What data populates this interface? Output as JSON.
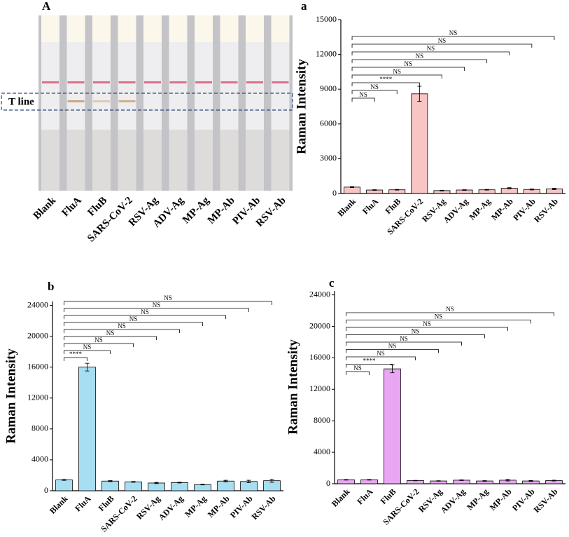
{
  "photo": {
    "label": "A",
    "t_line": "T line",
    "strips": [
      "Blank",
      "FluA",
      "FluB",
      "SARS-CoV-2",
      "RSV-Ag",
      "ADV-Ag",
      "MP-Ag",
      "MP-Ab",
      "PIV-Ab",
      "RSV-Ab"
    ]
  },
  "chart_data": [
    {
      "type": "bar",
      "panel": "a",
      "ylabel": "Raman Intensity",
      "color": "#f8c4c4",
      "categories": [
        "Blank",
        "FluA",
        "FluB",
        "SARS-CoV-2",
        "RSV-Ag",
        "ADV-Ag",
        "MP-Ag",
        "MP-Ab",
        "PIV-Ab",
        "RSV-Ab"
      ],
      "values": [
        550,
        300,
        320,
        8600,
        250,
        300,
        320,
        450,
        350,
        400
      ],
      "errors": [
        40,
        30,
        30,
        650,
        30,
        30,
        30,
        50,
        40,
        60
      ],
      "significance": [
        "NS",
        "NS",
        "****",
        "NS",
        "NS",
        "NS",
        "NS",
        "NS",
        "NS"
      ],
      "ylim": [
        0,
        15000
      ],
      "yticks": [
        0,
        3000,
        6000,
        9000,
        12000,
        15000
      ]
    },
    {
      "type": "bar",
      "panel": "b",
      "ylabel": "Raman Intensity",
      "color": "#a8def2",
      "categories": [
        "Blank",
        "FluA",
        "FluB",
        "SARS-CoV-2",
        "RSV-Ag",
        "ADV-Ag",
        "MP-Ag",
        "MP-Ab",
        "PIV-Ab",
        "RSV-Ab"
      ],
      "values": [
        1400,
        16000,
        1250,
        1150,
        1000,
        1050,
        800,
        1250,
        1200,
        1300
      ],
      "errors": [
        60,
        500,
        60,
        50,
        80,
        50,
        40,
        100,
        150,
        200
      ],
      "significance": [
        "****",
        "NS",
        "NS",
        "NS",
        "NS",
        "NS",
        "NS",
        "NS",
        "NS"
      ],
      "ylim": [
        0,
        24500
      ],
      "yticks": [
        0,
        4000,
        8000,
        12000,
        16000,
        20000,
        24000
      ]
    },
    {
      "type": "bar",
      "panel": "c",
      "ylabel": "Raman Intensity",
      "color": "#e9a6f2",
      "categories": [
        "Blank",
        "FluA",
        "FluB",
        "SARS-CoV-2",
        "RSV-Ag",
        "ADV-Ag",
        "MP-Ag",
        "MP-Ab",
        "PIV-Ab",
        "RSV-Ab"
      ],
      "values": [
        500,
        500,
        14600,
        400,
        350,
        450,
        350,
        450,
        350,
        400
      ],
      "errors": [
        40,
        40,
        500,
        30,
        30,
        40,
        40,
        100,
        50,
        50
      ],
      "significance": [
        "NS",
        "****",
        "NS",
        "NS",
        "NS",
        "NS",
        "NS",
        "NS",
        "NS"
      ],
      "ylim": [
        0,
        24500
      ],
      "yticks": [
        0,
        4000,
        8000,
        12000,
        16000,
        20000,
        24000
      ]
    }
  ]
}
